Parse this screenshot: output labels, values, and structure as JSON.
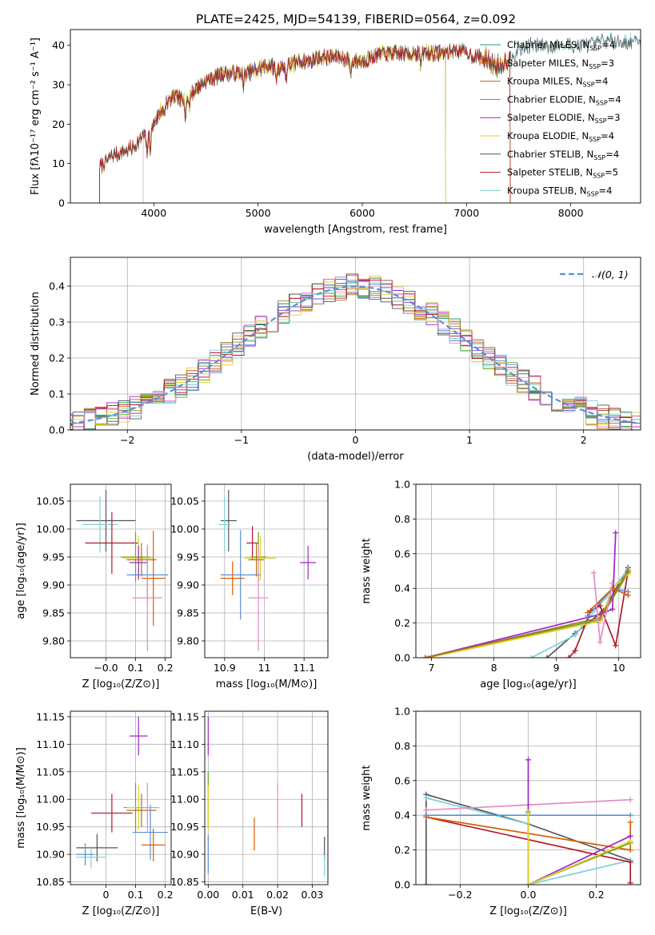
{
  "figure": {
    "title": "PLATE=2425, MJD=54139, FIBERID=0564, z=0.092"
  },
  "chart_data": [
    {
      "id": "spectrum",
      "type": "line",
      "title": "PLATE=2425, MJD=54139, FIBERID=0564, z=0.092",
      "xlabel": "wavelength [Angstrom, rest frame]",
      "ylabel": "Flux [fλ10⁻¹⁷ erg cm⁻² s⁻¹ A⁻¹]",
      "xlim": [
        3200,
        8670
      ],
      "ylim": [
        0,
        44
      ],
      "xticks": [
        4000,
        5000,
        6000,
        7000,
        8000
      ],
      "yticks": [
        0,
        10,
        20,
        30,
        40
      ],
      "grid": false,
      "legend_position": "upper-right",
      "profile": {
        "x": [
          3480,
          3600,
          3700,
          3800,
          3900,
          3950,
          4000,
          4100,
          4200,
          4300,
          4400,
          4500,
          4600,
          4700,
          4800,
          4900,
          5000,
          5100,
          5200,
          5300,
          5400,
          5500,
          5600,
          5700,
          5800,
          5900,
          6000,
          6100,
          6200,
          6300,
          6400,
          6500,
          6600,
          6700,
          6800,
          6900,
          7000,
          7100,
          7200,
          7300,
          7400,
          7500,
          7600,
          7700,
          7800,
          7900,
          8000,
          8100,
          8200,
          8300
        ],
        "y": [
          9,
          12,
          13,
          14,
          17,
          16,
          20,
          25,
          27,
          26,
          29,
          31,
          32,
          33,
          33,
          33,
          34,
          35,
          34,
          35,
          36,
          36,
          37,
          37,
          37,
          36,
          36,
          37,
          38,
          38,
          38,
          38,
          38,
          38,
          38,
          39,
          38,
          37,
          37,
          35,
          37,
          39,
          40,
          40,
          40,
          40,
          40,
          40,
          40,
          41
        ]
      },
      "series": [
        {
          "name": "Chabrier MILES, N",
          "sub": "SSP",
          "suffix": "=4",
          "color": "#1b9e77",
          "x_range": [
            3480,
            7420
          ]
        },
        {
          "name": "Salpeter MILES, N",
          "sub": "SSP",
          "suffix": "=3",
          "color": "#d95f02",
          "x_range": [
            3480,
            7420
          ]
        },
        {
          "name": "Kroupa MILES, N",
          "sub": "SSP",
          "suffix": "=4",
          "color": "#a6761d",
          "x_range": [
            3480,
            7420
          ]
        },
        {
          "name": "Chabrier ELODIE, N",
          "sub": "SSP",
          "suffix": "=4",
          "color": "#66a61e",
          "x_range": [
            3900,
            6800
          ]
        },
        {
          "name": "Salpeter ELODIE, N",
          "sub": "SSP",
          "suffix": "=3",
          "color": "#9e26c4",
          "x_range": [
            3900,
            6800
          ]
        },
        {
          "name": "Kroupa ELODIE, N",
          "sub": "SSP",
          "suffix": "=4",
          "color": "#e6d02a",
          "x_range": [
            3900,
            6800
          ]
        },
        {
          "name": "Chabrier STELIB, N",
          "sub": "SSP",
          "suffix": "=4",
          "color": "#555555",
          "x_range": [
            3480,
            8670
          ]
        },
        {
          "name": "Salpeter STELIB, N",
          "sub": "SSP",
          "suffix": "=5",
          "color": "#b2182b",
          "x_range": [
            3480,
            7420
          ]
        },
        {
          "name": "Kroupa STELIB, N",
          "sub": "SSP",
          "suffix": "=4",
          "color": "#7fd0d8",
          "x_range": [
            3480,
            8670
          ]
        }
      ]
    },
    {
      "id": "residuals",
      "type": "histogram",
      "xlabel": "(data-model)/error",
      "ylabel": "Normed distribution",
      "xlim": [
        -2.5,
        2.5
      ],
      "ylim": [
        0,
        0.48
      ],
      "xticks": [
        -2,
        -1,
        0,
        1,
        2
      ],
      "yticks": [
        0.0,
        0.1,
        0.2,
        0.3,
        0.4
      ],
      "grid": true,
      "legend_position": "upper-right",
      "reference": {
        "name": "𝒩(0, 1)",
        "color": "#5b8fd6",
        "style": "dashed"
      },
      "bin_width": 0.1
    },
    {
      "id": "age-vs-z",
      "type": "scatter",
      "xlabel": "Z [log₁₀(Z/Z⊙)]",
      "ylabel": "age  [log₁₀(age/yr)]",
      "xlim": [
        -0.12,
        0.22
      ],
      "ylim": [
        9.77,
        10.08
      ],
      "xticks": [
        -0.0,
        0.1,
        0.2
      ],
      "xticklabels": [
        "−0.0",
        "0.1",
        "0.2"
      ],
      "yticks": [
        9.8,
        9.85,
        9.9,
        9.95,
        10.0,
        10.05
      ],
      "grid": true,
      "points": [
        {
          "color": "#555555",
          "x": 0.0,
          "xerr": 0.1,
          "y": 10.015,
          "yerr": 0.055
        },
        {
          "color": "#7fd0d8",
          "x": -0.02,
          "xerr": 0.06,
          "y": 10.008,
          "yerr": 0.05
        },
        {
          "color": "#b2182b",
          "x": 0.02,
          "xerr": 0.09,
          "y": 9.975,
          "yerr": 0.055
        },
        {
          "color": "#66a61e",
          "x": 0.1,
          "xerr": 0.05,
          "y": 9.95,
          "yerr": 0.045
        },
        {
          "color": "#e6d02a",
          "x": 0.11,
          "xerr": 0.05,
          "y": 9.948,
          "yerr": 0.04
        },
        {
          "color": "#9e26c4",
          "x": 0.11,
          "xerr": 0.03,
          "y": 9.94,
          "yerr": 0.03
        },
        {
          "color": "#a6761d",
          "x": 0.12,
          "xerr": 0.05,
          "y": 9.945,
          "yerr": 0.03
        },
        {
          "color": "#5b8fd6",
          "x": 0.14,
          "xerr": 0.07,
          "y": 9.918,
          "yerr": 0.05
        },
        {
          "color": "#d95f02",
          "x": 0.16,
          "xerr": 0.04,
          "y": 9.912,
          "yerr": 0.085
        },
        {
          "color": "#e78ac3",
          "x": 0.14,
          "xerr": 0.05,
          "y": 9.877,
          "yerr": 0.095
        }
      ]
    },
    {
      "id": "age-vs-mass",
      "type": "scatter",
      "xlabel": "mass [log₁₀(M/M⊙)]",
      "ylabel": "",
      "xlim": [
        10.85,
        11.16
      ],
      "ylim": [
        9.77,
        10.08
      ],
      "xticks": [
        10.9,
        11.0,
        11.1
      ],
      "yticks": [
        9.8,
        9.85,
        9.9,
        9.95,
        10.0,
        10.05
      ],
      "grid": true,
      "points": [
        {
          "color": "#555555",
          "x": 10.91,
          "xerr": 0.02,
          "y": 10.015,
          "yerr": 0.055
        },
        {
          "color": "#7fd0d8",
          "x": 10.9,
          "xerr": 0.015,
          "y": 10.008,
          "yerr": 0.05
        },
        {
          "color": "#b2182b",
          "x": 10.97,
          "xerr": 0.015,
          "y": 9.975,
          "yerr": 0.03
        },
        {
          "color": "#66a61e",
          "x": 10.985,
          "xerr": 0.02,
          "y": 9.95,
          "yerr": 0.045
        },
        {
          "color": "#e6d02a",
          "x": 10.99,
          "xerr": 0.04,
          "y": 9.948,
          "yerr": 0.04
        },
        {
          "color": "#9e26c4",
          "x": 11.11,
          "xerr": 0.02,
          "y": 9.94,
          "yerr": 0.03
        },
        {
          "color": "#a6761d",
          "x": 10.98,
          "xerr": 0.02,
          "y": 9.945,
          "yerr": 0.03
        },
        {
          "color": "#5b8fd6",
          "x": 10.94,
          "xerr": 0.05,
          "y": 9.918,
          "yerr": 0.08
        },
        {
          "color": "#d95f02",
          "x": 10.92,
          "xerr": 0.03,
          "y": 9.912,
          "yerr": 0.03
        },
        {
          "color": "#e78ac3",
          "x": 10.985,
          "xerr": 0.025,
          "y": 9.877,
          "yerr": 0.095
        }
      ]
    },
    {
      "id": "weight-vs-age",
      "type": "line",
      "xlabel": "age  [log₁₀(age/yr)]",
      "ylabel": "mass weight",
      "xlim": [
        6.75,
        10.35
      ],
      "ylim": [
        0,
        1.0
      ],
      "xticks": [
        7,
        8,
        9,
        10
      ],
      "yticks": [
        0.0,
        0.2,
        0.4,
        0.6,
        0.8,
        1.0
      ],
      "grid": true,
      "series": [
        {
          "color": "#555555",
          "x": [
            8.85,
            9.3,
            9.75,
            10.15
          ],
          "y": [
            0.0,
            0.14,
            0.27,
            0.52
          ]
        },
        {
          "color": "#7fd0d8",
          "x": [
            8.6,
            9.3,
            9.8,
            10.15
          ],
          "y": [
            0.0,
            0.13,
            0.35,
            0.51
          ]
        },
        {
          "color": "#b2182b",
          "x": [
            9.2,
            9.3,
            9.55,
            9.7,
            9.95,
            10.15
          ],
          "y": [
            0.0,
            0.04,
            0.27,
            0.3,
            0.07,
            0.5
          ]
        },
        {
          "color": "#66a61e",
          "x": [
            6.9,
            9.7,
            10.15
          ],
          "y": [
            0.0,
            0.22,
            0.49
          ]
        },
        {
          "color": "#e6d02a",
          "x": [
            6.95,
            9.7,
            9.9,
            10.15
          ],
          "y": [
            0.0,
            0.21,
            0.4,
            0.48
          ]
        },
        {
          "color": "#9e26c4",
          "x": [
            6.9,
            9.7,
            9.9,
            9.95
          ],
          "y": [
            0.0,
            0.25,
            0.28,
            0.72
          ]
        },
        {
          "color": "#a6761d",
          "x": [
            6.9,
            9.7,
            10.15
          ],
          "y": [
            0.0,
            0.23,
            0.5
          ]
        },
        {
          "color": "#5b8fd6",
          "x": [
            9.5,
            9.9,
            10.15
          ],
          "y": [
            0.24,
            0.4,
            0.38
          ]
        },
        {
          "color": "#d95f02",
          "x": [
            9.5,
            9.9,
            10.15
          ],
          "y": [
            0.26,
            0.4,
            0.36
          ]
        },
        {
          "color": "#e78ac3",
          "x": [
            9.6,
            9.7,
            9.9
          ],
          "y": [
            0.49,
            0.09,
            0.43
          ]
        }
      ]
    },
    {
      "id": "mass-vs-z",
      "type": "scatter",
      "xlabel": "Z [log₁₀(Z/Z⊙)]",
      "ylabel": "mass [log₁₀(M/M⊙)]",
      "xlim": [
        -0.12,
        0.22
      ],
      "ylim": [
        10.845,
        11.16
      ],
      "xticks": [
        0.0,
        0.1,
        0.2
      ],
      "yticks": [
        10.85,
        10.9,
        10.95,
        11.0,
        11.05,
        11.1,
        11.15
      ],
      "grid": true,
      "points": [
        {
          "color": "#555555",
          "x": -0.03,
          "xerr": 0.07,
          "y": 10.912,
          "yerr": 0.025
        },
        {
          "color": "#7fd0d8",
          "x": -0.05,
          "xerr": 0.05,
          "y": 10.895,
          "yerr": 0.02
        },
        {
          "color": "#5b8fd6",
          "x": -0.07,
          "xerr": 0.03,
          "y": 10.9,
          "yerr": 0.02
        },
        {
          "color": "#b2182b",
          "x": 0.02,
          "xerr": 0.07,
          "y": 10.975,
          "yerr": 0.035
        },
        {
          "color": "#66a61e",
          "x": 0.1,
          "xerr": 0.04,
          "y": 10.985,
          "yerr": 0.045
        },
        {
          "color": "#e6d02a",
          "x": 0.11,
          "xerr": 0.04,
          "y": 10.985,
          "yerr": 0.04
        },
        {
          "color": "#9e26c4",
          "x": 0.11,
          "xerr": 0.03,
          "y": 11.115,
          "yerr": 0.035
        },
        {
          "color": "#a6761d",
          "x": 0.12,
          "xerr": 0.05,
          "y": 10.98,
          "yerr": 0.03
        },
        {
          "color": "#5b8fd6",
          "x": 0.15,
          "xerr": 0.06,
          "y": 10.94,
          "yerr": 0.05
        },
        {
          "color": "#d95f02",
          "x": 0.16,
          "xerr": 0.04,
          "y": 10.917,
          "yerr": 0.03
        },
        {
          "color": "#e78ac3",
          "x": 0.14,
          "xerr": 0.04,
          "y": 10.985,
          "yerr": 0.045
        }
      ]
    },
    {
      "id": "mass-vs-ebv",
      "type": "scatter",
      "xlabel": "E(B-V)",
      "ylabel": "",
      "xlim": [
        -0.001,
        0.0345
      ],
      "ylim": [
        10.845,
        11.16
      ],
      "xticks": [
        0.0,
        0.01,
        0.02,
        0.03
      ],
      "xticklabels": [
        "0.00",
        "0.01",
        "0.02",
        "0.03"
      ],
      "yticks": [
        10.85,
        10.9,
        10.95,
        11.0,
        11.05,
        11.1,
        11.15
      ],
      "grid": true,
      "points": [
        {
          "color": "#9e26c4",
          "x": 0.0,
          "xerr": 0,
          "y": 11.115,
          "yerr": 0.035
        },
        {
          "color": "#66a61e",
          "x": 0.0,
          "xerr": 0,
          "y": 11.0,
          "yerr": 0.05
        },
        {
          "color": "#e6d02a",
          "x": 0.0,
          "xerr": 0,
          "y": 10.985,
          "yerr": 0.04
        },
        {
          "color": "#5b8fd6",
          "x": 0.0,
          "xerr": 0,
          "y": 10.9,
          "yerr": 0.035
        },
        {
          "color": "#d95f02",
          "x": 0.0133,
          "xerr": 0,
          "y": 10.937,
          "yerr": 0.03
        },
        {
          "color": "#e78ac3",
          "x": 0.02,
          "xerr": 0,
          "y": 10.985,
          "yerr": 0.045
        },
        {
          "color": "#b2182b",
          "x": 0.027,
          "xerr": 0,
          "y": 10.98,
          "yerr": 0.03
        },
        {
          "color": "#555555",
          "x": 0.0335,
          "xerr": 0,
          "y": 10.912,
          "yerr": 0.02
        },
        {
          "color": "#7fd0d8",
          "x": 0.0335,
          "xerr": 0,
          "y": 10.88,
          "yerr": 0.02
        }
      ]
    },
    {
      "id": "weight-vs-z",
      "type": "line",
      "xlabel": "Z [log₁₀(Z/Z⊙)]",
      "ylabel": "mass weight",
      "xlim": [
        -0.33,
        0.33
      ],
      "ylim": [
        0,
        1.0
      ],
      "xticks": [
        -0.2,
        0.0,
        0.2
      ],
      "xticklabels": [
        "−0.2",
        "0.0",
        "0.2"
      ],
      "yticks": [
        0.0,
        0.2,
        0.4,
        0.6,
        0.8,
        1.0
      ],
      "grid": true,
      "series": [
        {
          "color": "#555555",
          "x": [
            -0.3,
            -0.3,
            0.0,
            0.3
          ],
          "y": [
            0.0,
            0.52,
            0.35,
            0.14
          ]
        },
        {
          "color": "#7fd0d8",
          "x": [
            -0.3,
            0.0,
            0.0,
            0.3
          ],
          "y": [
            0.5,
            0.35,
            0.0,
            0.14
          ]
        },
        {
          "color": "#b2182b",
          "x": [
            -0.3,
            0.3,
            0.3
          ],
          "y": [
            0.39,
            0.13,
            0.01
          ]
        },
        {
          "color": "#d95f02",
          "x": [
            -0.3,
            0.3,
            0.3
          ],
          "y": [
            0.39,
            0.2,
            0.36
          ]
        },
        {
          "color": "#5b8fd6",
          "x": [
            -0.3,
            0.3
          ],
          "y": [
            0.4,
            0.4
          ]
        },
        {
          "color": "#e78ac3",
          "x": [
            -0.3,
            0.3
          ],
          "y": [
            0.43,
            0.49
          ]
        },
        {
          "color": "#9e26c4",
          "x": [
            0.0,
            0.0,
            0.3
          ],
          "y": [
            0.72,
            0.0,
            0.28
          ]
        },
        {
          "color": "#66a61e",
          "x": [
            0.0,
            0.0,
            0.3
          ],
          "y": [
            0.42,
            0.0,
            0.24
          ]
        },
        {
          "color": "#e6d02a",
          "x": [
            0.0,
            0.0,
            0.3
          ],
          "y": [
            0.41,
            0.0,
            0.25
          ]
        }
      ]
    }
  ]
}
